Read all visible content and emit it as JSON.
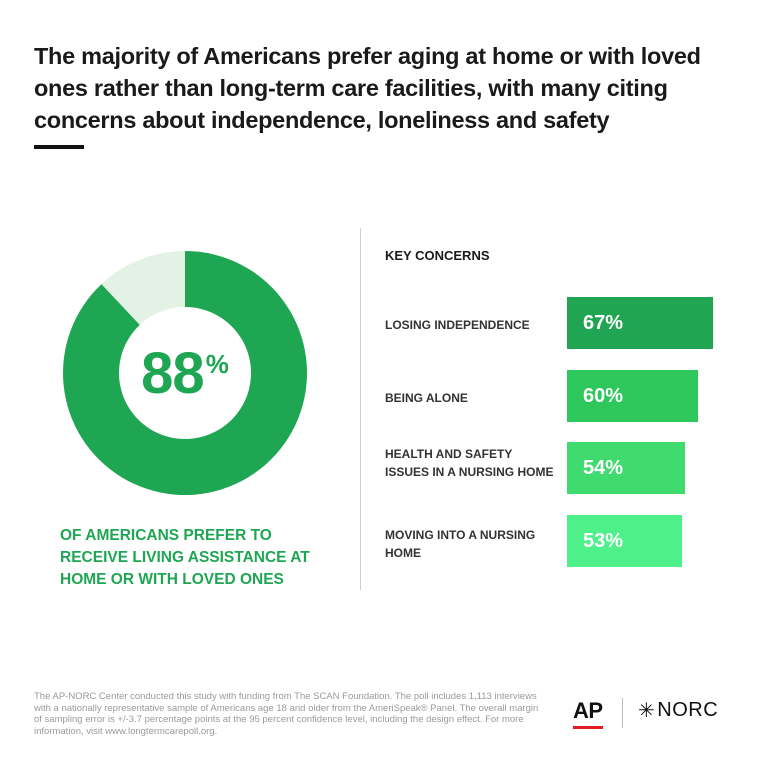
{
  "title": "The majority of Americans prefer aging at home or with loved ones rather than long-term care facilities, with many citing concerns about independence, loneliness and safety",
  "colors": {
    "donut_main": "#1fa653",
    "donut_rest": "#e2f3e6",
    "bars": [
      "#20a552",
      "#2ec75c",
      "#3fdb6e",
      "#4df089"
    ]
  },
  "chart_data": [
    {
      "type": "pie",
      "values": [
        88,
        12
      ],
      "center_value": "88",
      "center_unit": "%",
      "caption": "OF AMERICANS PREFER TO RECEIVE LIVING ASSISTANCE AT HOME OR WITH LOVED ONES"
    },
    {
      "type": "bar",
      "title": "KEY CONCERNS",
      "categories": [
        "LOSING INDEPENDENCE",
        "BEING ALONE",
        "HEALTH AND SAFETY ISSUES IN A NURSING HOME",
        "MOVING INTO A NURSING HOME"
      ],
      "values": [
        67,
        60,
        54,
        53
      ],
      "labels": [
        "67%",
        "60%",
        "54%",
        "53%"
      ]
    }
  ],
  "footnote": "The AP-NORC Center conducted this study with funding from The SCAN Foundation. The poll includes 1,113 interviews with a nationally representative sample of Americans age 18 and older from the AmeriSpeak® Panel. The overall margin of sampling error is +/-3.7 percentage points at the 95 percent confidence level, including the design effect. For more information, visit www.longtermcarepoll.org.",
  "logos": {
    "ap": "AP",
    "norc": "NORC"
  }
}
